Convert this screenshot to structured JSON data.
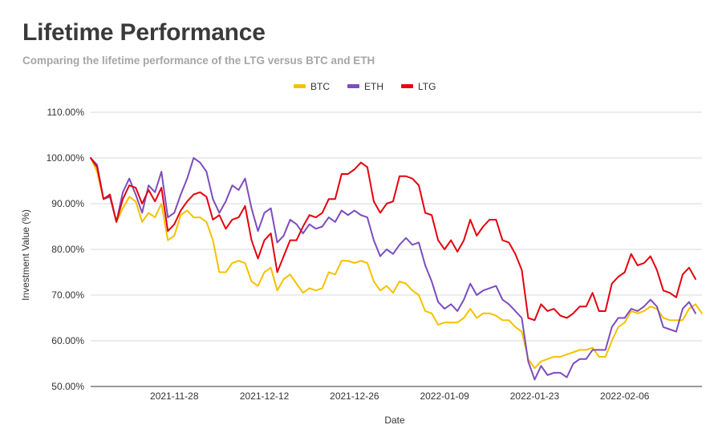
{
  "chart_data": {
    "type": "line",
    "title": "Lifetime Performance",
    "subtitle": "Comparing the lifetime performance of the LTG versus BTC and ETH",
    "xlabel": "Date",
    "ylabel": "Investment Value (%)",
    "ylim": [
      50,
      110
    ],
    "yticks": [
      "50.00%",
      "60.00%",
      "70.00%",
      "80.00%",
      "90.00%",
      "100.00%",
      "110.00%"
    ],
    "ytick_values": [
      50,
      60,
      70,
      80,
      90,
      100,
      110
    ],
    "xticks": [
      "2021-11-28",
      "2021-12-12",
      "2021-12-26",
      "2022-01-09",
      "2022-01-23",
      "2022-02-06"
    ],
    "xtick_index": [
      13,
      27,
      41,
      55,
      69,
      83
    ],
    "legend_position": "top-center",
    "x_count": 96,
    "series": [
      {
        "name": "BTC",
        "color": "#f6c100",
        "values": [
          100,
          97,
          91,
          92,
          86,
          89,
          91.5,
          90.5,
          86,
          88,
          87,
          90,
          82,
          83,
          87.5,
          88.5,
          87,
          87,
          86,
          82,
          75,
          75,
          77,
          77.5,
          77,
          73,
          72,
          75,
          76,
          71,
          73.5,
          74.5,
          72.5,
          70.5,
          71.5,
          71,
          71.5,
          75,
          74.5,
          77.5,
          77.5,
          77,
          77.5,
          77,
          73,
          71,
          72,
          70.5,
          73,
          72.5,
          71,
          70,
          66.5,
          66,
          63.5,
          64,
          64,
          64,
          65,
          67,
          65,
          66,
          66,
          65.5,
          64.5,
          64.5,
          63,
          62,
          56,
          54,
          55.5,
          56,
          56.5,
          56.5,
          57,
          57.5,
          58,
          58,
          58.5,
          56.5,
          56.5,
          60,
          63,
          64,
          66.5,
          66,
          66.5,
          67.5,
          67,
          65,
          64.5,
          64.5,
          64.5,
          67,
          68,
          66
        ]
      },
      {
        "name": "ETH",
        "color": "#7c4dbf",
        "values": [
          100,
          98.5,
          91,
          91.5,
          86,
          92.5,
          95.5,
          92,
          88,
          94,
          92.5,
          97,
          87,
          88,
          92,
          95.5,
          100,
          99,
          97,
          91,
          88,
          90.5,
          94,
          93,
          95.5,
          89,
          84,
          88,
          89,
          81.5,
          83,
          86.5,
          85.5,
          83.5,
          85.5,
          84.5,
          85,
          87,
          86,
          88.5,
          87.5,
          88.5,
          87.5,
          87,
          82,
          78.5,
          80,
          79,
          81,
          82.5,
          81,
          81.5,
          76.5,
          73,
          68.5,
          67,
          68,
          66.5,
          69,
          72.5,
          70,
          71,
          71.5,
          72,
          69,
          68,
          66.5,
          65,
          55.5,
          51.5,
          54.5,
          52.5,
          53,
          53,
          52,
          55,
          56,
          56,
          58,
          58,
          58,
          63,
          65,
          65,
          67,
          66.5,
          67.5,
          69,
          67.5,
          63,
          62.5,
          62,
          67,
          68.5,
          66
        ]
      },
      {
        "name": "LTG",
        "color": "#e5020e",
        "values": [
          100,
          98,
          91,
          92,
          86,
          91,
          94,
          93.5,
          90,
          93,
          90.5,
          93.5,
          84,
          85.5,
          88.5,
          90.5,
          92,
          92.5,
          91.5,
          86.5,
          87.5,
          84.5,
          86.5,
          87,
          89.5,
          82,
          78,
          82,
          83.5,
          75,
          78.5,
          82,
          82,
          85,
          87.5,
          87,
          88,
          91,
          91,
          96.5,
          96.5,
          97.5,
          99,
          98,
          90.5,
          88,
          90,
          90.5,
          96,
          96,
          95.5,
          94,
          88,
          87.5,
          82,
          80,
          82,
          79.5,
          82,
          86.5,
          83,
          85,
          86.5,
          86.5,
          82,
          81.5,
          79,
          75.5,
          65,
          64.5,
          68,
          66.5,
          67,
          65.5,
          65,
          66,
          67.5,
          67.5,
          70.5,
          66.5,
          66.5,
          72.5,
          74,
          75,
          79,
          76.5,
          77,
          78.5,
          75.5,
          71,
          70.5,
          69.5,
          74.5,
          76,
          73.5
        ]
      }
    ]
  }
}
